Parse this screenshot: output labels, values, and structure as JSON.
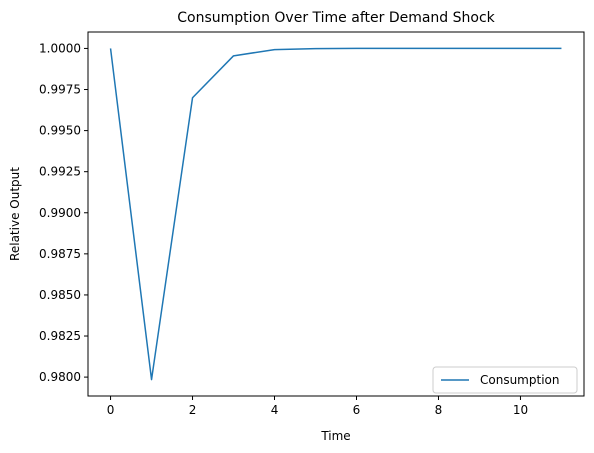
{
  "chart_data": {
    "type": "line",
    "title": "Consumption Over Time after Demand Shock",
    "xlabel": "Time",
    "ylabel": "Relative Output",
    "xlim": [
      -0.55,
      11.55
    ],
    "ylim": [
      0.97885,
      1.001
    ],
    "x_ticks": [
      0,
      2,
      4,
      6,
      8,
      10
    ],
    "y_ticks": [
      "0.9800",
      "0.9825",
      "0.9850",
      "0.9875",
      "0.9900",
      "0.9925",
      "0.9950",
      "0.9975",
      "1.0000"
    ],
    "grid": false,
    "legend_position": "lower-right",
    "colors": {
      "series": "#1f77b4",
      "axes": "#000000",
      "legend_border": "#cccccc"
    },
    "series": [
      {
        "name": "Consumption",
        "x": [
          0,
          1,
          2,
          3,
          4,
          5,
          6,
          7,
          8,
          9,
          10,
          11
        ],
        "values": [
          1.0,
          0.97985,
          0.997,
          0.99955,
          0.99993,
          0.99999,
          1.0,
          1.0,
          1.0,
          1.0,
          1.0,
          1.0
        ]
      }
    ]
  }
}
